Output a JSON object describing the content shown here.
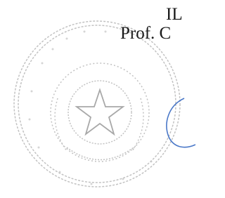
{
  "document": {
    "lines": [
      "IL",
      "Prof. C"
    ]
  }
}
